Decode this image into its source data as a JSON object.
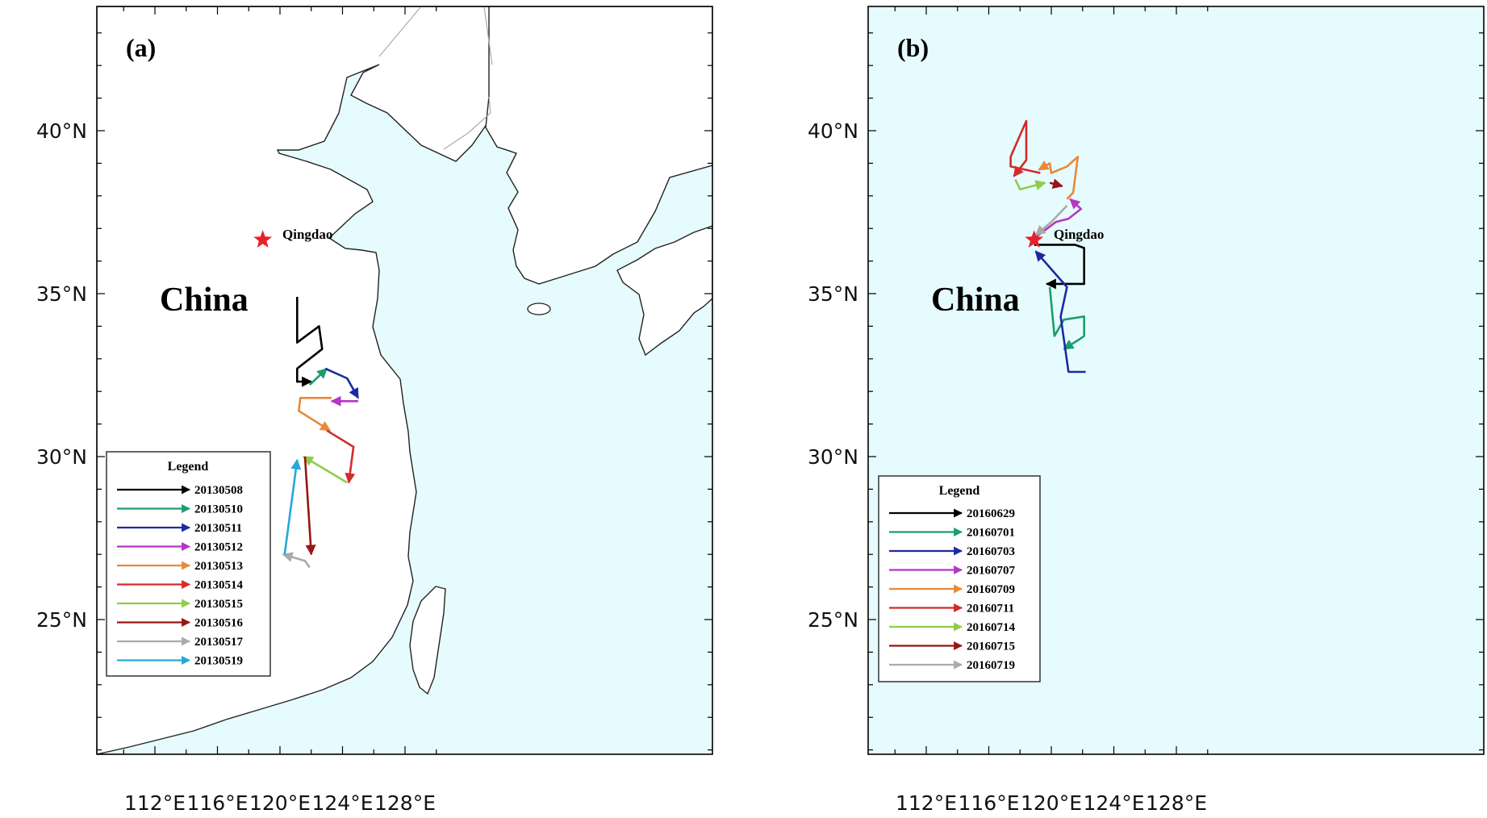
{
  "colors": {
    "sea": "#e6fbfd",
    "land": "#ffffff",
    "coast": "#222222",
    "border": "#aaaaaa",
    "star": "#e8202a",
    "black": "#000000",
    "green": "#1a9e6e",
    "blue": "#1b2aa0",
    "magenta": "#b536c6",
    "orange": "#e8893a",
    "red": "#d42a2a",
    "lightgreen": "#8fcc4a",
    "darkred": "#991515",
    "gray": "#aaaaaa",
    "cyan": "#25a8d8"
  },
  "axes": {
    "lon_ticks": [
      "112°E",
      "116°E",
      "120°E",
      "124°E",
      "128°E"
    ],
    "lat_ticks": [
      "40°N",
      "35°N",
      "30°N",
      "25°N"
    ]
  },
  "panels": [
    {
      "label": "(a)",
      "country_label": "China",
      "city_label": "Qingdao",
      "legend_title": "Legend",
      "tracks": [
        {
          "date": "20130508",
          "color": "#000000",
          "points": [
            [
              121.1,
              34.9
            ],
            [
              121.1,
              33.5
            ],
            [
              122.5,
              34.0
            ],
            [
              122.7,
              33.3
            ],
            [
              121.1,
              32.7
            ],
            [
              121.1,
              32.3
            ],
            [
              122.0,
              32.3
            ]
          ]
        },
        {
          "date": "20130510",
          "color": "#1a9e6e",
          "points": [
            [
              121.9,
              32.2
            ],
            [
              123.0,
              32.7
            ]
          ]
        },
        {
          "date": "20130511",
          "color": "#1b2aa0",
          "points": [
            [
              122.9,
              32.7
            ],
            [
              124.3,
              32.4
            ],
            [
              125.0,
              31.8
            ]
          ]
        },
        {
          "date": "20130512",
          "color": "#b536c6",
          "points": [
            [
              125.0,
              31.7
            ],
            [
              123.3,
              31.7
            ]
          ]
        },
        {
          "date": "20130513",
          "color": "#e8893a",
          "points": [
            [
              123.3,
              31.8
            ],
            [
              121.3,
              31.8
            ],
            [
              121.2,
              31.4
            ],
            [
              123.2,
              30.8
            ]
          ]
        },
        {
          "date": "20130514",
          "color": "#d42a2a",
          "points": [
            [
              123.0,
              30.8
            ],
            [
              124.7,
              30.3
            ],
            [
              124.4,
              29.2
            ]
          ]
        },
        {
          "date": "20130515",
          "color": "#8fcc4a",
          "points": [
            [
              124.3,
              29.2
            ],
            [
              121.5,
              30.0
            ]
          ]
        },
        {
          "date": "20130516",
          "color": "#991515",
          "points": [
            [
              121.6,
              30.0
            ],
            [
              122.0,
              27.0
            ]
          ]
        },
        {
          "date": "20130517",
          "color": "#aaaaaa",
          "points": [
            [
              121.9,
              26.6
            ],
            [
              121.6,
              26.8
            ],
            [
              120.2,
              27.0
            ]
          ]
        },
        {
          "date": "20130519",
          "color": "#25a8d8",
          "points": [
            [
              120.3,
              27.0
            ],
            [
              121.1,
              29.9
            ]
          ]
        }
      ]
    },
    {
      "label": "(b)",
      "country_label": "China",
      "city_label": "Qingdao",
      "legend_title": "Legend",
      "tracks": [
        {
          "date": "20160629",
          "color": "#000000",
          "points": [
            [
              118.9,
              36.5
            ],
            [
              121.5,
              36.5
            ],
            [
              122.1,
              36.4
            ],
            [
              122.1,
              35.3
            ],
            [
              119.7,
              35.3
            ]
          ]
        },
        {
          "date": "20160701",
          "color": "#1a9e6e",
          "points": [
            [
              119.9,
              35.2
            ],
            [
              120.2,
              33.7
            ],
            [
              120.8,
              34.2
            ],
            [
              122.1,
              34.3
            ],
            [
              122.1,
              33.7
            ],
            [
              121.8,
              33.6
            ],
            [
              120.8,
              33.3
            ]
          ]
        },
        {
          "date": "20160703",
          "color": "#1b2aa0",
          "points": [
            [
              122.2,
              32.6
            ],
            [
              121.1,
              32.6
            ],
            [
              120.6,
              34.3
            ],
            [
              121.0,
              35.2
            ],
            [
              119.0,
              36.3
            ]
          ]
        },
        {
          "date": "20160707",
          "color": "#b536c6",
          "points": [
            [
              118.9,
              36.7
            ],
            [
              120.3,
              37.2
            ],
            [
              121.1,
              37.3
            ],
            [
              121.9,
              37.6
            ],
            [
              121.2,
              37.9
            ]
          ]
        },
        {
          "date": "20160709",
          "color": "#e8893a",
          "points": [
            [
              121.0,
              37.9
            ],
            [
              121.4,
              38.1
            ],
            [
              121.7,
              39.2
            ],
            [
              121.0,
              38.9
            ],
            [
              120.0,
              38.7
            ],
            [
              119.9,
              39.0
            ],
            [
              119.2,
              38.8
            ]
          ]
        },
        {
          "date": "20160711",
          "color": "#d42a2a",
          "points": [
            [
              119.3,
              38.7
            ],
            [
              117.4,
              38.9
            ],
            [
              117.4,
              39.2
            ],
            [
              118.4,
              40.3
            ],
            [
              118.4,
              39.1
            ],
            [
              117.6,
              38.6
            ]
          ]
        },
        {
          "date": "20160714",
          "color": "#8fcc4a",
          "points": [
            [
              117.7,
              38.5
            ],
            [
              118.0,
              38.2
            ],
            [
              119.6,
              38.4
            ]
          ]
        },
        {
          "date": "20160715",
          "color": "#991515",
          "points": [
            [
              119.9,
              38.4
            ],
            [
              120.7,
              38.3
            ]
          ]
        },
        {
          "date": "20160719",
          "color": "#aaaaaa",
          "points": [
            [
              121.0,
              37.7
            ],
            [
              120.0,
              37.2
            ],
            [
              119.0,
              36.8
            ]
          ]
        }
      ]
    }
  ]
}
